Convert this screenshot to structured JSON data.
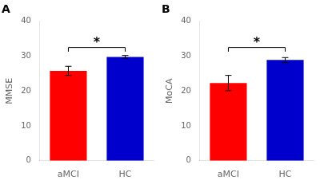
{
  "chart_data": [
    {
      "type": "bar",
      "title": "A",
      "ylabel": "MMSE",
      "categories": [
        "aMCI",
        "HC"
      ],
      "values": [
        25.8,
        29.8
      ],
      "errors": [
        1.3,
        0.4
      ],
      "colors": [
        "#FF0000",
        "#0000CD"
      ],
      "ylim": [
        0,
        40
      ],
      "yticks": [
        0,
        10,
        20,
        30,
        40
      ],
      "grid": false,
      "annotations": [
        {
          "type": "bracket",
          "text": "*",
          "from": "aMCI",
          "to": "HC",
          "y": 32.5,
          "tick": 1.2
        }
      ]
    },
    {
      "type": "bar",
      "title": "B",
      "ylabel": "MoCA",
      "categories": [
        "aMCI",
        "HC"
      ],
      "values": [
        22.3,
        28.9
      ],
      "errors": [
        2.2,
        0.7
      ],
      "colors": [
        "#FF0000",
        "#0000CD"
      ],
      "ylim": [
        0,
        40
      ],
      "yticks": [
        0,
        10,
        20,
        30,
        40
      ],
      "grid": false,
      "annotations": [
        {
          "type": "bracket",
          "text": "*",
          "from": "aMCI",
          "to": "HC",
          "y": 32.5,
          "tick": 1.2
        }
      ]
    }
  ]
}
